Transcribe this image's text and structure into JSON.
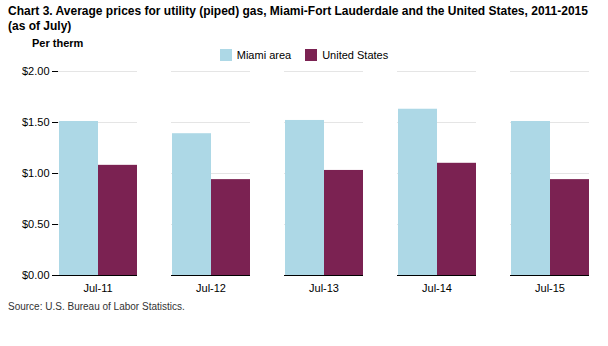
{
  "chart_data": {
    "type": "bar",
    "title": "Chart 3. Average prices for utility (piped) gas, Miami-Fort Lauderdale and the United States, 2011-2015 (as of July)",
    "ylabel": "Per therm",
    "caption": "Source: U.S. Bureau of Labor Statistics.",
    "categories": [
      "Jul-11",
      "Jul-12",
      "Jul-13",
      "Jul-14",
      "Jul-15"
    ],
    "series": [
      {
        "name": "Miami area",
        "color": "#ADD8E6",
        "values": [
          1.51,
          1.39,
          1.52,
          1.63,
          1.51
        ]
      },
      {
        "name": "United States",
        "color": "#7B2252",
        "values": [
          1.08,
          0.94,
          1.03,
          1.1,
          0.94
        ]
      }
    ],
    "ylim": [
      0.0,
      2.0
    ],
    "yticks": [
      {
        "value": 0.0,
        "label": "$0.00"
      },
      {
        "value": 0.5,
        "label": "$0.50"
      },
      {
        "value": 1.0,
        "label": "$1.00"
      },
      {
        "value": 1.5,
        "label": "$1.50"
      },
      {
        "value": 2.0,
        "label": "$2.00"
      }
    ],
    "grid": true,
    "legend": "top"
  }
}
